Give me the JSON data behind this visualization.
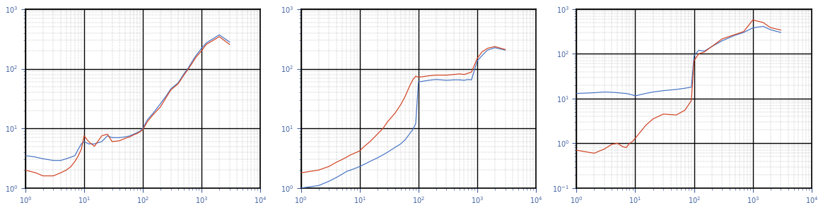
{
  "subplots": [
    {
      "xlim": [
        1,
        10000
      ],
      "ylim": [
        1,
        1000
      ],
      "blue_freq": [
        1,
        1.5,
        2,
        3,
        4,
        5,
        6,
        7,
        8,
        9,
        10,
        12,
        15,
        20,
        25,
        30,
        40,
        50,
        60,
        70,
        80,
        90,
        100,
        120,
        150,
        200,
        250,
        300,
        400,
        500,
        600,
        700,
        800,
        1000,
        1200,
        1500,
        2000,
        3000
      ],
      "blue_val": [
        3.5,
        3.3,
        3.1,
        2.9,
        2.9,
        3.1,
        3.3,
        3.5,
        4.5,
        5.5,
        6.0,
        5.5,
        5.5,
        6.0,
        7.5,
        7.0,
        7.0,
        7.2,
        7.5,
        8.0,
        8.5,
        9.0,
        10,
        14,
        18,
        26,
        35,
        46,
        58,
        82,
        105,
        135,
        165,
        220,
        270,
        310,
        370,
        280
      ],
      "orange_freq": [
        1,
        1.5,
        2,
        3,
        4,
        5,
        6,
        7,
        8,
        9,
        10,
        12,
        15,
        20,
        25,
        30,
        40,
        50,
        60,
        70,
        80,
        90,
        100,
        120,
        150,
        200,
        250,
        300,
        400,
        500,
        600,
        700,
        800,
        1000,
        1200,
        1500,
        2000,
        3000
      ],
      "orange_val": [
        2.0,
        1.8,
        1.6,
        1.6,
        1.8,
        2.0,
        2.3,
        2.8,
        3.5,
        4.5,
        7.5,
        6.0,
        5.0,
        7.5,
        8.0,
        6.0,
        6.2,
        6.8,
        7.2,
        7.8,
        8.2,
        8.8,
        9.5,
        13,
        17,
        23,
        33,
        44,
        56,
        78,
        100,
        126,
        155,
        200,
        255,
        290,
        345,
        255
      ]
    },
    {
      "xlim": [
        1,
        10000
      ],
      "ylim": [
        1,
        1000
      ],
      "blue_freq": [
        1,
        2,
        3,
        4,
        5,
        6,
        7,
        8,
        9,
        10,
        12,
        15,
        20,
        25,
        30,
        40,
        50,
        60,
        70,
        80,
        90,
        100,
        150,
        200,
        300,
        400,
        500,
        600,
        700,
        800,
        1000,
        1200,
        1500,
        2000,
        3000
      ],
      "blue_val": [
        1.0,
        1.1,
        1.3,
        1.5,
        1.7,
        1.9,
        2.0,
        2.1,
        2.2,
        2.3,
        2.5,
        2.8,
        3.2,
        3.6,
        4.0,
        4.8,
        5.5,
        6.5,
        8.0,
        9.5,
        12,
        60,
        64,
        66,
        64,
        65,
        65,
        64,
        66,
        65,
        135,
        165,
        205,
        225,
        205
      ],
      "orange_freq": [
        1,
        2,
        3,
        4,
        5,
        6,
        7,
        8,
        9,
        10,
        12,
        15,
        20,
        25,
        30,
        40,
        50,
        60,
        70,
        80,
        90,
        100,
        150,
        200,
        300,
        400,
        500,
        600,
        700,
        800,
        1000,
        1200,
        1500,
        2000,
        3000
      ],
      "orange_val": [
        1.8,
        2.0,
        2.3,
        2.7,
        3.0,
        3.3,
        3.6,
        3.8,
        4.0,
        4.2,
        5.0,
        6.0,
        8.0,
        10,
        13,
        18,
        25,
        35,
        50,
        65,
        75,
        72,
        76,
        78,
        78,
        80,
        82,
        80,
        84,
        88,
        148,
        190,
        220,
        235,
        210
      ]
    },
    {
      "xlim": [
        1,
        10000
      ],
      "ylim": [
        0.1,
        1000
      ],
      "blue_freq": [
        1,
        2,
        3,
        4,
        5,
        6,
        7,
        8,
        9,
        10,
        15,
        20,
        30,
        50,
        70,
        90,
        100,
        120,
        150,
        200,
        300,
        400,
        500,
        700,
        1000,
        1500,
        2000,
        3000
      ],
      "blue_val": [
        13,
        13.5,
        14,
        13.8,
        13.5,
        13.2,
        13.0,
        12.5,
        12.0,
        11.5,
        13,
        14,
        15,
        16,
        17,
        18,
        90,
        120,
        115,
        145,
        195,
        230,
        260,
        300,
        380,
        410,
        345,
        300
      ],
      "orange_freq": [
        1,
        2,
        3,
        4,
        5,
        6,
        7,
        8,
        9,
        10,
        15,
        20,
        30,
        50,
        70,
        90,
        100,
        120,
        150,
        200,
        300,
        400,
        500,
        700,
        1000,
        1500,
        2000,
        3000
      ],
      "orange_val": [
        0.7,
        0.6,
        0.75,
        0.95,
        1.0,
        0.85,
        0.8,
        1.0,
        1.1,
        1.3,
        2.5,
        3.5,
        4.5,
        4.3,
        5.5,
        9.0,
        70,
        100,
        110,
        145,
        215,
        245,
        270,
        315,
        570,
        500,
        385,
        340
      ]
    }
  ],
  "blue_color": "#4472C4",
  "orange_color": "#D04020",
  "bg_color": "#ffffff",
  "linewidth": 0.85,
  "tick_color": "#4060A0",
  "major_grid_color": "#000000",
  "minor_grid_color": "#888888",
  "major_grid_lw": 1.0,
  "minor_grid_lw": 0.35,
  "minor_grid_ls": ":"
}
